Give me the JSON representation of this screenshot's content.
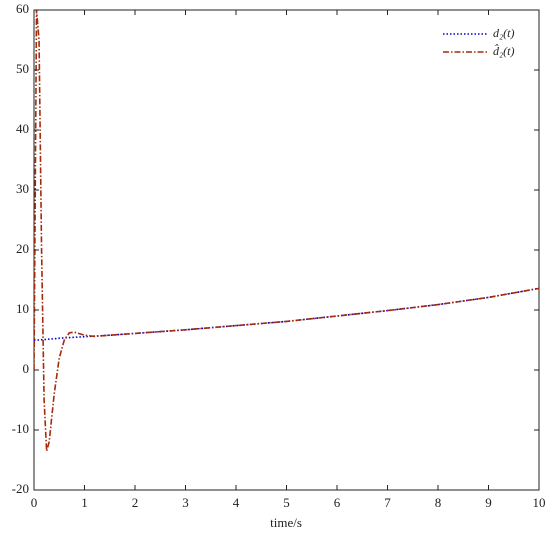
{
  "chart_data": {
    "type": "line",
    "x_label": "time/s",
    "x": [
      0,
      0.05,
      0.1,
      0.15,
      0.2,
      0.25,
      0.3,
      0.4,
      0.5,
      0.6,
      0.7,
      0.8,
      1,
      1.2,
      1.5,
      2,
      3,
      4,
      5,
      6,
      7,
      8,
      9,
      10
    ],
    "series": [
      {
        "name": "d₂(t)",
        "color": "#0000cc",
        "dash": "1.5 2",
        "values": [
          5,
          5,
          5,
          5.05,
          5.1,
          5.1,
          5.15,
          5.2,
          5.3,
          5.35,
          5.4,
          5.45,
          5.55,
          5.65,
          5.8,
          6.1,
          6.7,
          7.4,
          8.1,
          9,
          9.9,
          10.9,
          12.1,
          13.6
        ]
      },
      {
        "name": "d̂₂(t)",
        "color": "#a52a0a",
        "dash": "6 2 1.5 2",
        "values": [
          0,
          60,
          55,
          20,
          -5,
          -13.5,
          -12,
          -4,
          2,
          5,
          6.2,
          6.3,
          5.8,
          5.6,
          5.8,
          6.1,
          6.7,
          7.4,
          8.1,
          9,
          9.9,
          10.9,
          12.1,
          13.6
        ]
      }
    ],
    "xlim": [
      0,
      10
    ],
    "xticks": [
      0,
      1,
      2,
      3,
      4,
      5,
      6,
      7,
      8,
      9,
      10
    ],
    "ylim": [
      -20,
      60
    ],
    "yticks": [
      -20,
      -10,
      0,
      10,
      20,
      30,
      40,
      50,
      60
    ],
    "legend": "upper right"
  }
}
